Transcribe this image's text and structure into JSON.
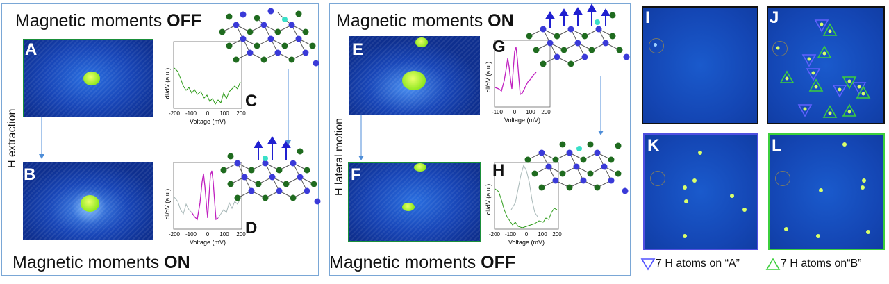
{
  "panel_left": {
    "title_normal": "Magnetic moments ",
    "title_bold": "OFF",
    "bottom_normal": "Magnetic moments ",
    "bottom_bold": "ON",
    "side_label": "H extraction",
    "letters": [
      "A",
      "B",
      "C",
      "D"
    ]
  },
  "panel_mid": {
    "title_normal": "Magnetic moments ",
    "title_bold": "ON",
    "bottom_normal": "Magnetic moments ",
    "bottom_bold": "OFF",
    "side_label": "H lateral motion",
    "letters": [
      "E",
      "F",
      "G",
      "H"
    ]
  },
  "panel_right": {
    "letters": [
      "I",
      "J",
      "K",
      "L"
    ],
    "legend_a": "7 H atoms on “A”",
    "legend_b": "7 H atoms on“B”"
  },
  "spectra": {
    "ylabel": "dI/dV (a.u.)",
    "xlabel": "Voltage (mV)",
    "ticks_wide": [
      "-200",
      "-100",
      "0",
      "100",
      "200"
    ],
    "ticks_narrow": [
      "-100",
      "0",
      "100",
      "200"
    ],
    "ticks_h": [
      "-200",
      "-100",
      "0",
      "100",
      "200"
    ]
  },
  "colors": {
    "frame": "#7aa7d6",
    "stm_dark": "#0d2a8c",
    "stm_mid": "#1f5fd8",
    "adsorbate": "#b6ff2a",
    "curve_green": "#2c9b18",
    "curve_magenta": "#c020c0",
    "curve_grey": "#a8b8b8",
    "atom_blue": "#3a3ad8",
    "atom_green": "#1f6b1f",
    "triangle_a": "#5050ff",
    "triangle_b": "#3ccf3c"
  }
}
